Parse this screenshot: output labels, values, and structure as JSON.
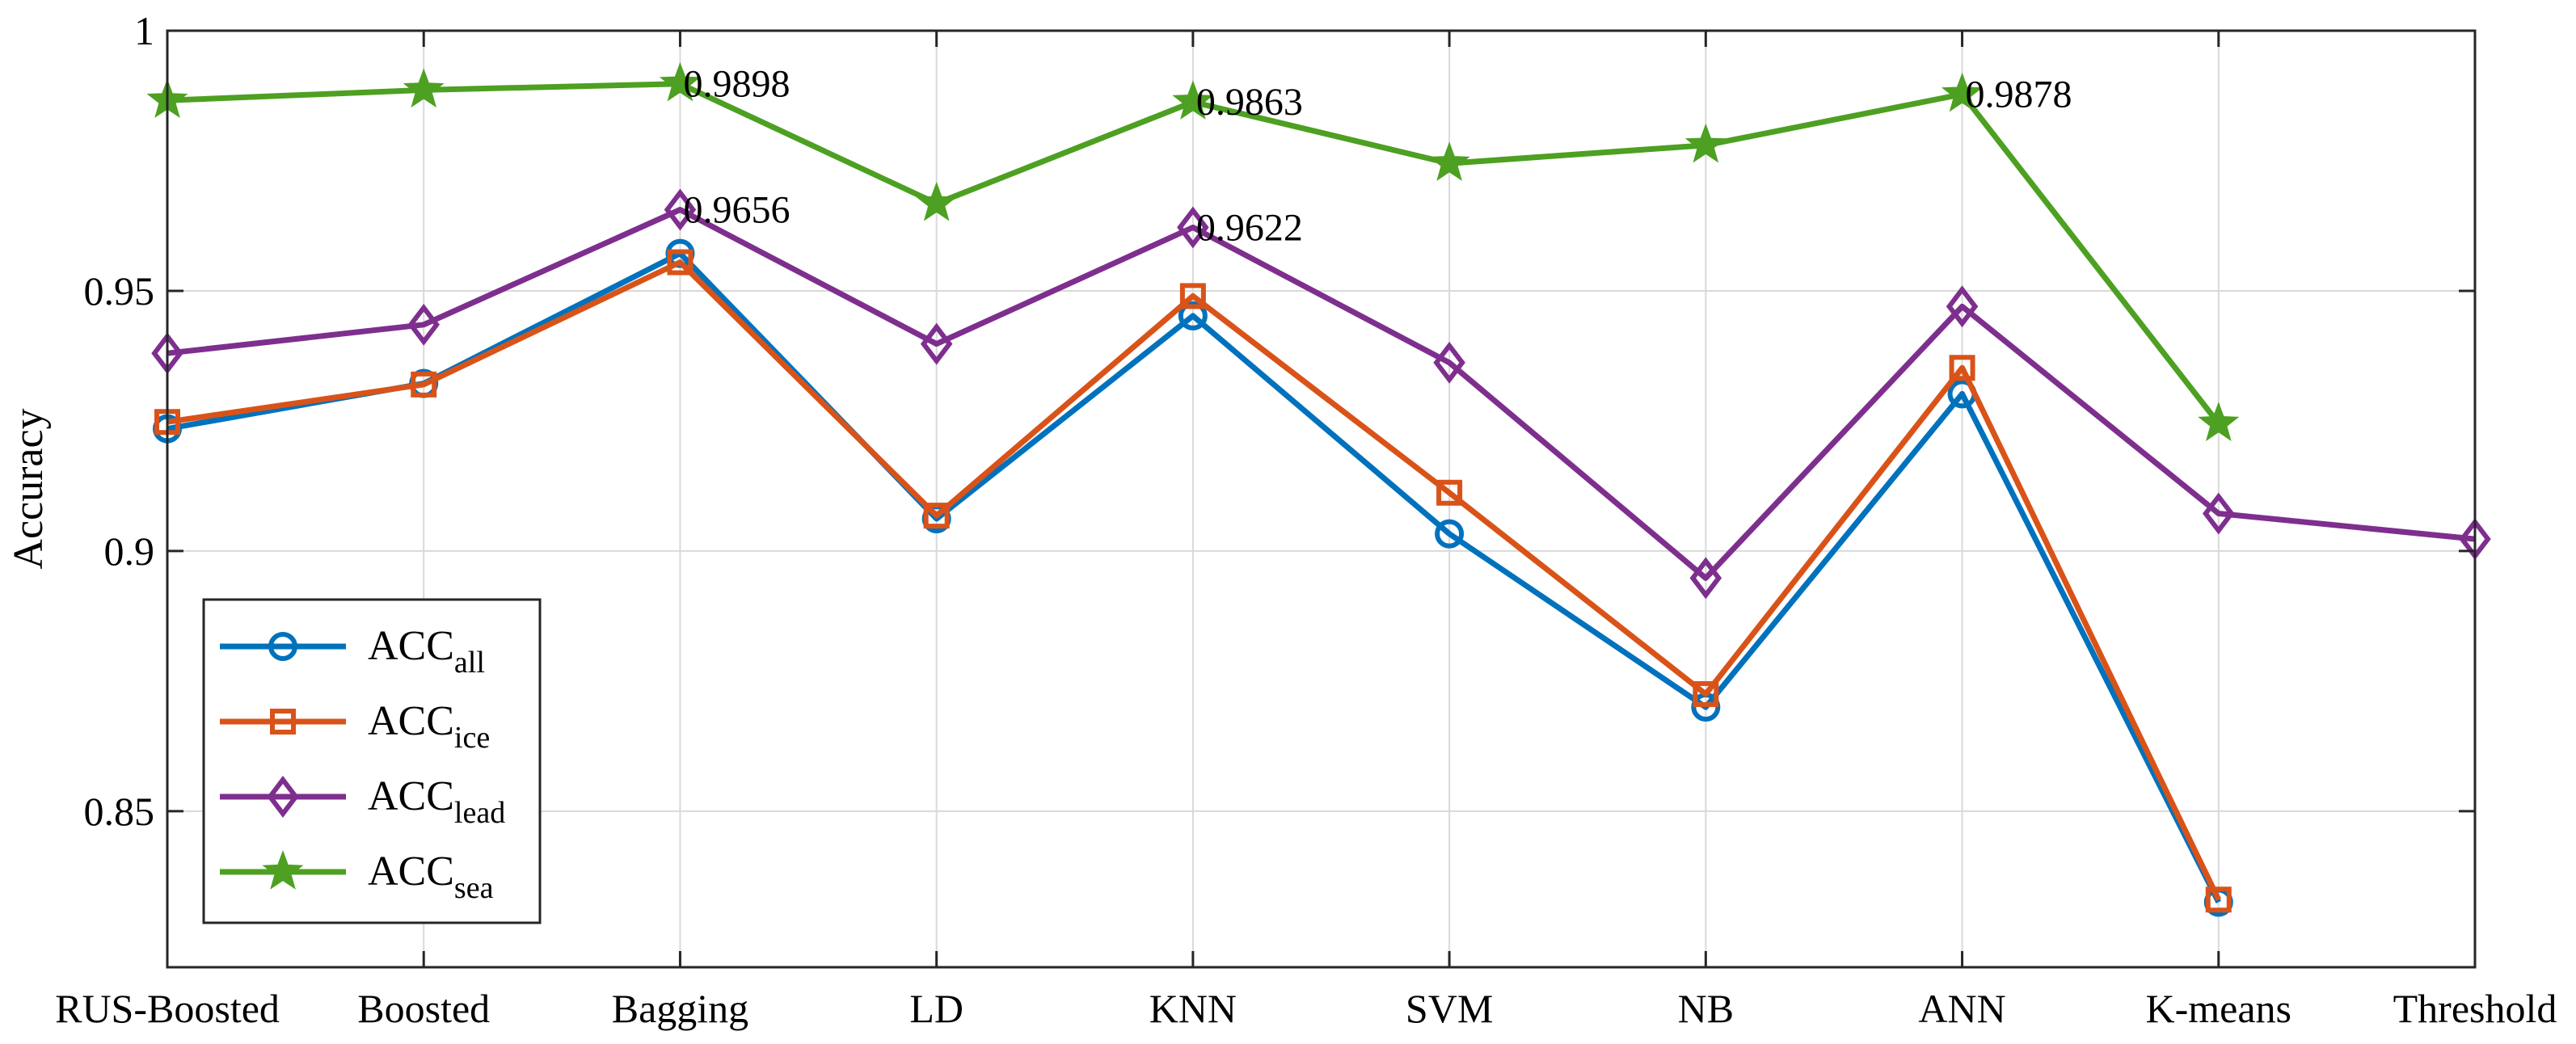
{
  "chart_data": {
    "type": "line",
    "title": "",
    "xlabel": "",
    "ylabel": "Accuracy",
    "ylim": [
      0.82,
      1.0
    ],
    "yticks": [
      0.85,
      0.9,
      0.95,
      1
    ],
    "ytick_labels": [
      "0.85",
      "0.9",
      "0.95",
      "1"
    ],
    "categories": [
      "RUS-Boosted",
      "Boosted",
      "Bagging",
      "LD",
      "KNN",
      "SVM",
      "NB",
      "ANN",
      "K-means",
      "Threshold"
    ],
    "grid": true,
    "legend_position": "bottom-left",
    "series": [
      {
        "name": "ACC",
        "subscript": "all",
        "color": "#0072BD",
        "marker": "circle",
        "values": [
          0.9235,
          0.9322,
          0.9572,
          0.9062,
          0.9452,
          0.9033,
          0.87,
          0.9302,
          0.8325,
          null
        ]
      },
      {
        "name": "ACC",
        "subscript": "ice",
        "color": "#D95319",
        "marker": "square",
        "values": [
          0.9248,
          0.932,
          0.9555,
          0.9068,
          0.949,
          0.9112,
          0.8725,
          0.9352,
          0.833,
          null
        ]
      },
      {
        "name": "ACC",
        "subscript": "lead",
        "color": "#7E2F8E",
        "marker": "diamond",
        "values": [
          0.938,
          0.9435,
          0.9656,
          0.9398,
          0.9622,
          0.9362,
          0.8948,
          0.947,
          0.9072,
          0.9023
        ]
      },
      {
        "name": "ACC",
        "subscript": "sea",
        "color": "#4DA021",
        "marker": "star",
        "values": [
          0.9866,
          0.9886,
          0.9898,
          0.9668,
          0.9863,
          0.9745,
          0.978,
          0.9878,
          0.9245,
          null
        ]
      }
    ],
    "annotations": [
      {
        "series": 3,
        "index": 2,
        "text": "0.9898"
      },
      {
        "series": 3,
        "index": 4,
        "text": "0.9863"
      },
      {
        "series": 3,
        "index": 7,
        "text": "0.9878"
      },
      {
        "series": 2,
        "index": 2,
        "text": "0.9656"
      },
      {
        "series": 2,
        "index": 4,
        "text": "0.9622"
      }
    ]
  }
}
